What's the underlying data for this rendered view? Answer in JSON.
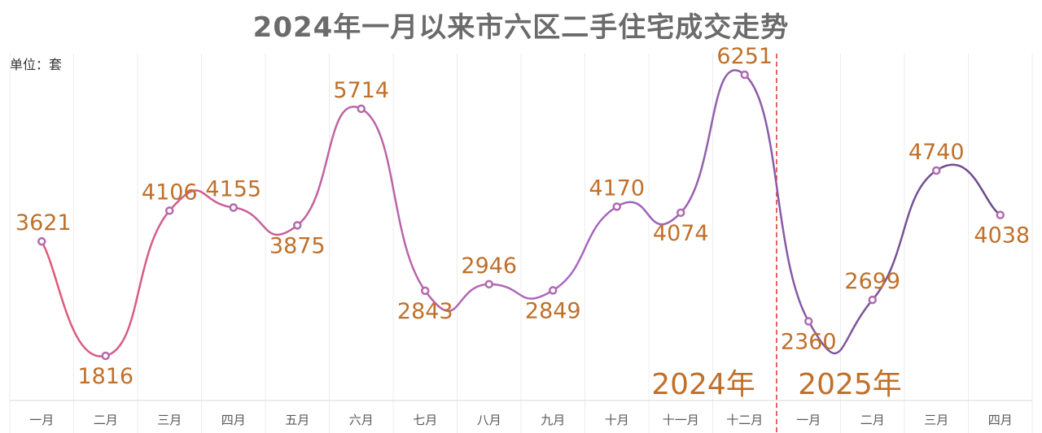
{
  "title": "2024年一月以来市六区二手住宅成交走势",
  "unit": "单位：套",
  "colors": {
    "line_start": "#e05a7a",
    "line_mid": "#a86ac0",
    "line_end": "#6a4a8a",
    "labels": "#c0702a",
    "divider": "#e03a3a"
  },
  "chart_data": {
    "type": "line",
    "categories": [
      "一月",
      "二月",
      "三月",
      "四月",
      "五月",
      "六月",
      "七月",
      "八月",
      "九月",
      "十月",
      "十一月",
      "十二月",
      "一月",
      "二月",
      "三月",
      "四月"
    ],
    "values": [
      3621,
      1816,
      4106,
      4155,
      3875,
      5714,
      2843,
      2946,
      2849,
      4170,
      4074,
      6251,
      2360,
      2699,
      4740,
      4038
    ],
    "year_groups": [
      {
        "label": "2024年",
        "start": 0,
        "end": 11
      },
      {
        "label": "2025年",
        "start": 12,
        "end": 15
      }
    ],
    "divider_after_index": 11,
    "ylim": [
      0,
      7000
    ],
    "grid": "vertical"
  }
}
